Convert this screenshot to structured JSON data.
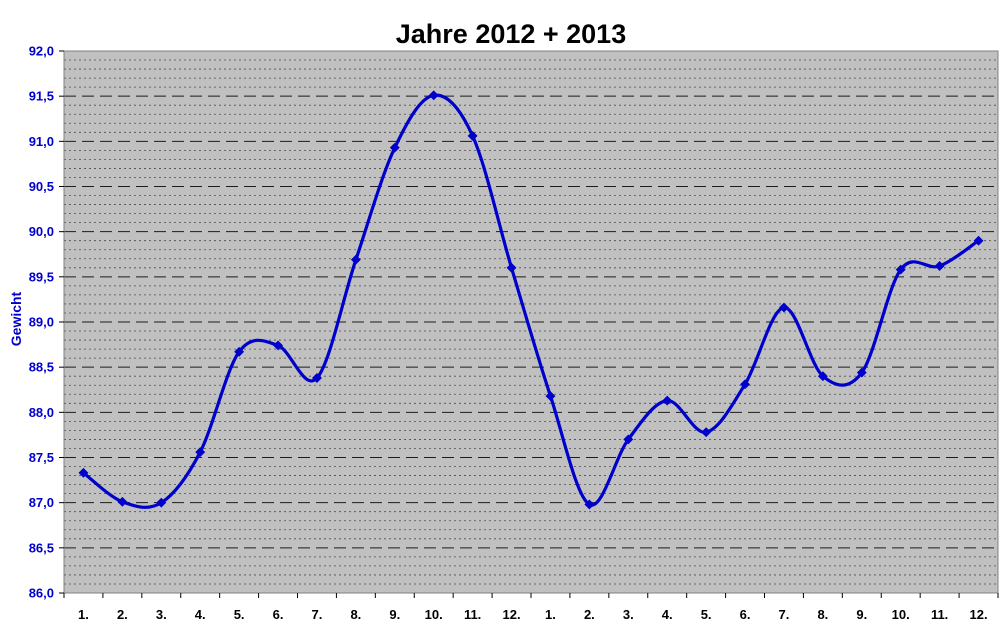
{
  "chart_data": {
    "type": "line",
    "title": "Jahre 2012 + 2013",
    "xlabel": "",
    "ylabel": "Gewicht",
    "categories": [
      "1.",
      "2.",
      "3.",
      "4.",
      "5.",
      "6.",
      "7.",
      "8.",
      "9.",
      "10.",
      "11.",
      "12.",
      "1.",
      "2.",
      "3.",
      "4.",
      "5.",
      "6.",
      "7.",
      "8.",
      "9.",
      "10.",
      "11.",
      "12."
    ],
    "values": [
      87.33,
      87.01,
      87.0,
      87.56,
      88.67,
      88.74,
      88.38,
      89.69,
      90.93,
      91.51,
      91.06,
      89.6,
      88.18,
      86.98,
      87.7,
      88.13,
      87.78,
      88.31,
      89.16,
      88.4,
      88.44,
      89.58,
      89.62,
      89.9
    ],
    "ylim": [
      86.0,
      92.0
    ],
    "yticks": [
      "86,0",
      "86,5",
      "87,0",
      "87,5",
      "88,0",
      "88,5",
      "89,0",
      "89,5",
      "90,0",
      "90,5",
      "91,0",
      "91,5",
      "92,0"
    ],
    "grid": true,
    "legend": "none",
    "colors": {
      "line": "#0000cc",
      "plot_background": "#c0c0c0",
      "ytick_text": "#0000cc",
      "major_grid": "#000000",
      "minor_grid": "#000000"
    }
  }
}
